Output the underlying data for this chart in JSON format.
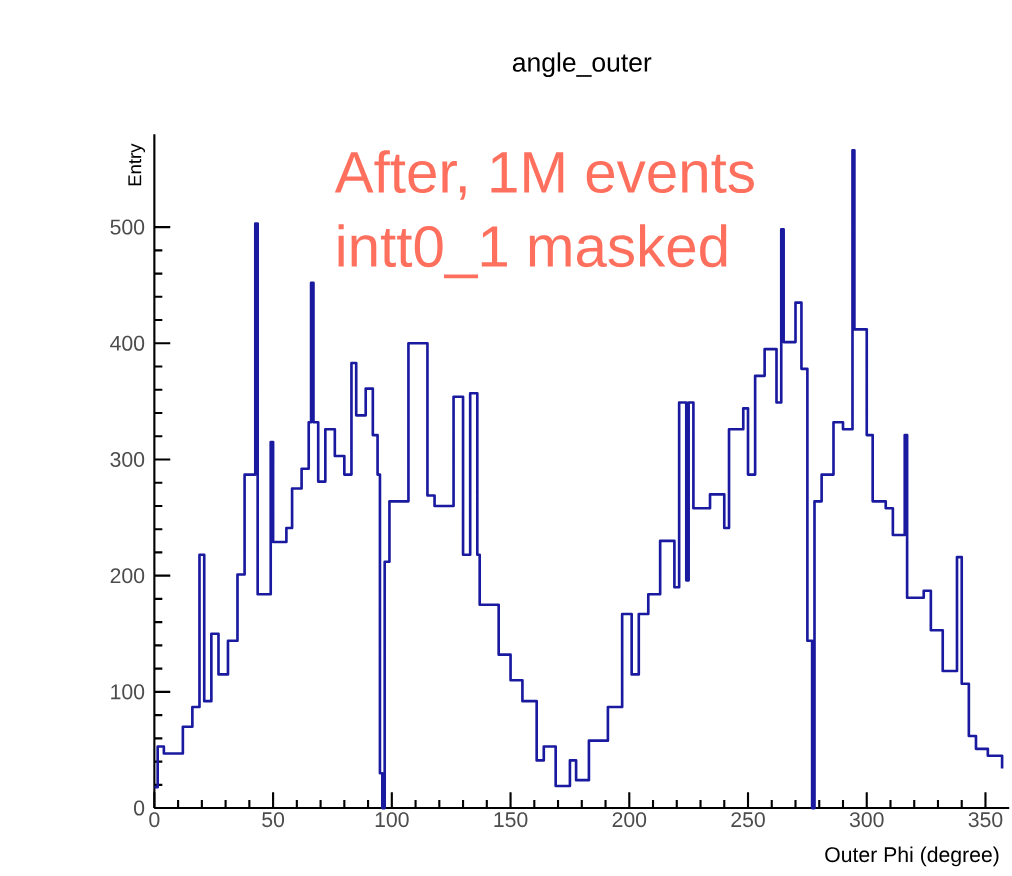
{
  "chart_data": {
    "type": "step",
    "title": "angle_outer",
    "xlabel": "Outer Phi (degree)",
    "ylabel": "Entry",
    "annotations": [
      "After, 1M events",
      "intt0_1 masked"
    ],
    "x": [
      0,
      1.4,
      4,
      12,
      16,
      19,
      21,
      22,
      24,
      27,
      31,
      35,
      38,
      41.5,
      42.5,
      43.5,
      45,
      49,
      50,
      51.5,
      55.6,
      58,
      62,
      65,
      66,
      67,
      69,
      72,
      76,
      80,
      83,
      85,
      89,
      92,
      94,
      95,
      96,
      97,
      99,
      107,
      108,
      115,
      118,
      126,
      130,
      131,
      133,
      136,
      137,
      139,
      145,
      150,
      155,
      161,
      164,
      169,
      175,
      177.6,
      183,
      191,
      197,
      201,
      204,
      208,
      213,
      219,
      221,
      224,
      225,
      227,
      230,
      234,
      240,
      242,
      248,
      250,
      253,
      257,
      262,
      264,
      265,
      267,
      270,
      272.5,
      275,
      277,
      278,
      281,
      286,
      290,
      294,
      294.8,
      295,
      300,
      302.5,
      308,
      311,
      316,
      317,
      319,
      324,
      327,
      332,
      338,
      339,
      340,
      343,
      346,
      351,
      357
    ],
    "values": [
      18,
      53,
      47,
      70,
      87,
      218,
      92,
      92,
      150,
      115,
      144,
      201,
      287,
      287,
      503,
      184,
      184,
      315,
      229,
      229,
      241,
      275,
      292,
      332,
      452,
      332,
      281,
      326,
      303,
      287,
      383,
      338,
      361,
      321,
      287,
      30,
      0,
      212,
      264,
      400,
      400,
      269,
      260,
      354,
      218,
      218,
      357,
      218,
      175,
      175,
      132,
      110,
      92,
      41,
      53,
      19,
      41,
      24,
      58,
      87,
      167,
      115,
      167,
      184,
      230,
      190,
      349,
      196,
      349,
      258,
      258,
      270,
      241,
      326,
      344,
      287,
      372,
      395,
      349,
      498,
      401,
      401,
      435,
      378,
      144,
      0,
      264,
      287,
      332,
      326,
      566,
      412,
      412,
      321,
      264,
      258,
      235,
      321,
      181,
      181,
      187,
      153,
      118,
      216,
      216,
      107,
      62,
      51,
      45,
      34
    ],
    "color": "#1a1aa0",
    "line_style": "solid",
    "marker": "none",
    "xlim": [
      0,
      360
    ],
    "ylim": [
      0,
      580
    ],
    "xticks": [
      0,
      50,
      100,
      150,
      200,
      250,
      300,
      350
    ],
    "yticks": [
      0,
      100,
      200,
      300,
      400,
      500
    ]
  }
}
